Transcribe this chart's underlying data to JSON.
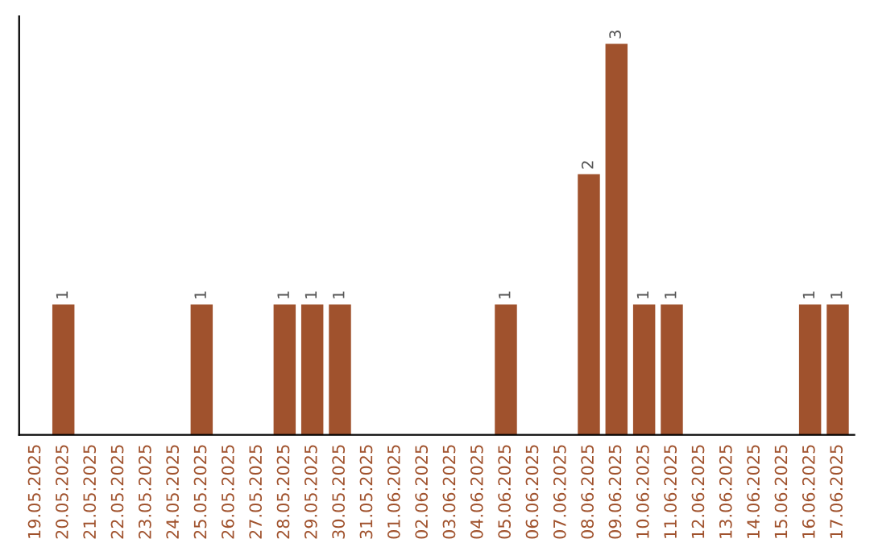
{
  "chart_data": {
    "type": "bar",
    "categories": [
      "19.05.2025",
      "20.05.2025",
      "21.05.2025",
      "22.05.2025",
      "23.05.2025",
      "24.05.2025",
      "25.05.2025",
      "26.05.2025",
      "27.05.2025",
      "28.05.2025",
      "29.05.2025",
      "30.05.2025",
      "31.05.2025",
      "01.06.2025",
      "02.06.2025",
      "03.06.2025",
      "04.06.2025",
      "05.06.2025",
      "06.06.2025",
      "07.06.2025",
      "08.06.2025",
      "09.06.2025",
      "10.06.2025",
      "11.06.2025",
      "12.06.2025",
      "13.06.2025",
      "14.06.2025",
      "15.06.2025",
      "16.06.2025",
      "17.06.2025"
    ],
    "values": [
      0,
      1,
      0,
      0,
      0,
      0,
      1,
      0,
      0,
      1,
      1,
      1,
      0,
      0,
      0,
      0,
      0,
      1,
      0,
      0,
      2,
      3,
      1,
      1,
      0,
      0,
      0,
      0,
      1,
      1
    ],
    "color": "#a0522d",
    "value_labels": [
      null,
      "1",
      null,
      null,
      null,
      null,
      "1",
      null,
      null,
      "1",
      "1",
      "1",
      null,
      null,
      null,
      null,
      null,
      "1",
      null,
      null,
      "2",
      "3",
      "1",
      "1",
      null,
      null,
      null,
      null,
      "1",
      "1"
    ],
    "tick_labels": "x",
    "grid": false,
    "legend": false
  }
}
